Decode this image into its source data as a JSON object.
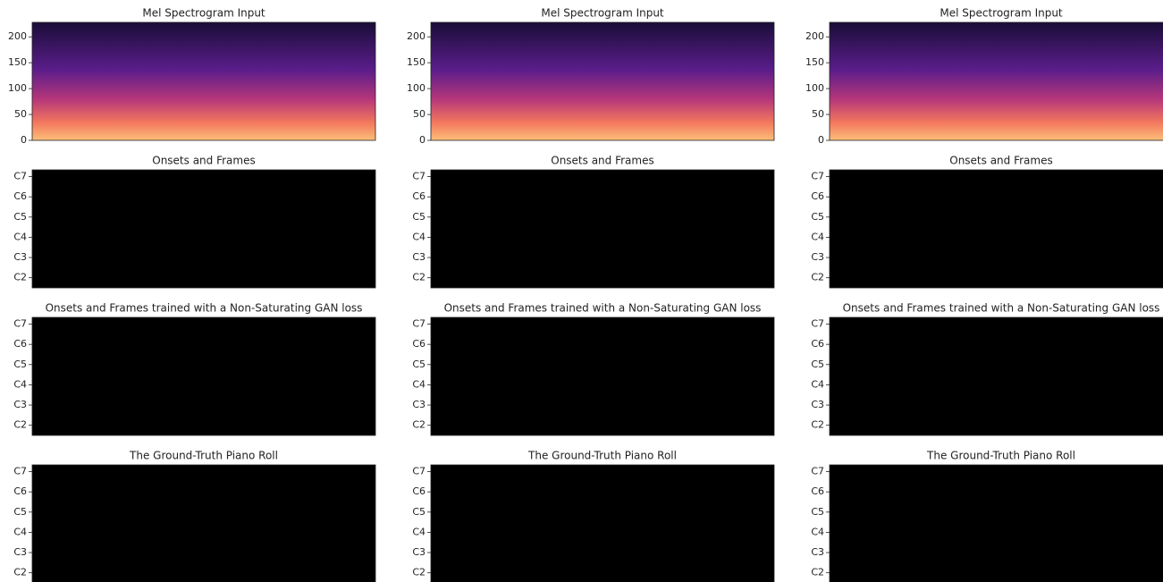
{
  "chart_data": [
    {
      "type": "spectrogram",
      "title": "Mel Spectrogram Input",
      "ylim": [
        0,
        228
      ],
      "yticks": [
        0,
        50,
        100,
        150,
        200
      ]
    },
    {
      "type": "spectrogram",
      "title": "Mel Spectrogram Input",
      "ylim": [
        0,
        228
      ],
      "yticks": [
        0,
        50,
        100,
        150,
        200
      ]
    },
    {
      "type": "spectrogram",
      "title": "Mel Spectrogram Input",
      "ylim": [
        0,
        228
      ],
      "yticks": [
        0,
        50,
        100,
        150,
        200
      ]
    },
    {
      "type": "pianoroll",
      "title": "Onsets and Frames",
      "ylim": [
        30,
        100
      ],
      "yticks": [
        {
          "value": 36,
          "label": "C2"
        },
        {
          "value": 48,
          "label": "C3"
        },
        {
          "value": 60,
          "label": "C4"
        },
        {
          "value": 72,
          "label": "C5"
        },
        {
          "value": 84,
          "label": "C6"
        },
        {
          "value": 96,
          "label": "C7"
        }
      ]
    },
    {
      "type": "pianoroll",
      "title": "Onsets and Frames",
      "ylim": [
        30,
        100
      ],
      "yticks": [
        {
          "value": 36,
          "label": "C2"
        },
        {
          "value": 48,
          "label": "C3"
        },
        {
          "value": 60,
          "label": "C4"
        },
        {
          "value": 72,
          "label": "C5"
        },
        {
          "value": 84,
          "label": "C6"
        },
        {
          "value": 96,
          "label": "C7"
        }
      ]
    },
    {
      "type": "pianoroll",
      "title": "Onsets and Frames",
      "ylim": [
        30,
        100
      ],
      "yticks": [
        {
          "value": 36,
          "label": "C2"
        },
        {
          "value": 48,
          "label": "C3"
        },
        {
          "value": 60,
          "label": "C4"
        },
        {
          "value": 72,
          "label": "C5"
        },
        {
          "value": 84,
          "label": "C6"
        },
        {
          "value": 96,
          "label": "C7"
        }
      ]
    },
    {
      "type": "pianoroll",
      "title": "Onsets and Frames trained with a Non-Saturating GAN loss",
      "ylim": [
        30,
        100
      ],
      "yticks": [
        {
          "value": 36,
          "label": "C2"
        },
        {
          "value": 48,
          "label": "C3"
        },
        {
          "value": 60,
          "label": "C4"
        },
        {
          "value": 72,
          "label": "C5"
        },
        {
          "value": 84,
          "label": "C6"
        },
        {
          "value": 96,
          "label": "C7"
        }
      ]
    },
    {
      "type": "pianoroll",
      "title": "Onsets and Frames trained with a Non-Saturating GAN loss",
      "ylim": [
        30,
        100
      ],
      "yticks": [
        {
          "value": 36,
          "label": "C2"
        },
        {
          "value": 48,
          "label": "C3"
        },
        {
          "value": 60,
          "label": "C4"
        },
        {
          "value": 72,
          "label": "C5"
        },
        {
          "value": 84,
          "label": "C6"
        },
        {
          "value": 96,
          "label": "C7"
        }
      ]
    },
    {
      "type": "pianoroll",
      "title": "Onsets and Frames trained with a Non-Saturating GAN loss",
      "ylim": [
        30,
        100
      ],
      "yticks": [
        {
          "value": 36,
          "label": "C2"
        },
        {
          "value": 48,
          "label": "C3"
        },
        {
          "value": 60,
          "label": "C4"
        },
        {
          "value": 72,
          "label": "C5"
        },
        {
          "value": 84,
          "label": "C6"
        },
        {
          "value": 96,
          "label": "C7"
        }
      ]
    },
    {
      "type": "pianoroll",
      "title": "The Ground-Truth Piano Roll",
      "ylim": [
        30,
        100
      ],
      "yticks": [
        {
          "value": 36,
          "label": "C2"
        },
        {
          "value": 48,
          "label": "C3"
        },
        {
          "value": 60,
          "label": "C4"
        },
        {
          "value": 72,
          "label": "C5"
        },
        {
          "value": 84,
          "label": "C6"
        },
        {
          "value": 96,
          "label": "C7"
        }
      ]
    },
    {
      "type": "pianoroll",
      "title": "The Ground-Truth Piano Roll",
      "ylim": [
        30,
        100
      ],
      "yticks": [
        {
          "value": 36,
          "label": "C2"
        },
        {
          "value": 48,
          "label": "C3"
        },
        {
          "value": 60,
          "label": "C4"
        },
        {
          "value": 72,
          "label": "C5"
        },
        {
          "value": 84,
          "label": "C6"
        },
        {
          "value": 96,
          "label": "C7"
        }
      ]
    },
    {
      "type": "pianoroll",
      "title": "The Ground-Truth Piano Roll",
      "ylim": [
        30,
        100
      ],
      "yticks": [
        {
          "value": 36,
          "label": "C2"
        },
        {
          "value": 48,
          "label": "C3"
        },
        {
          "value": 60,
          "label": "C4"
        },
        {
          "value": 72,
          "label": "C5"
        },
        {
          "value": 84,
          "label": "C6"
        },
        {
          "value": 96,
          "label": "C7"
        }
      ]
    }
  ]
}
